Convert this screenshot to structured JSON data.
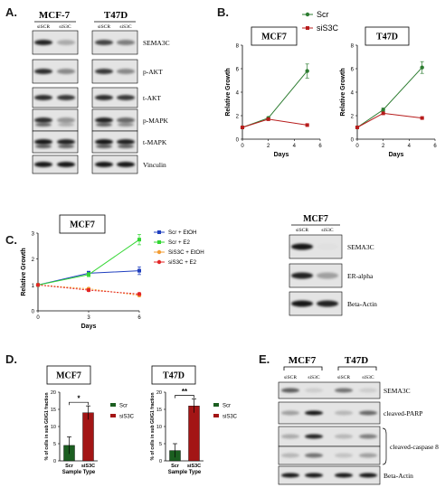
{
  "panels": {
    "A": {
      "letter": "A.",
      "cell_lines": [
        "MCF-7",
        "T47D"
      ],
      "lanes": [
        "siSCR",
        "siS3C"
      ],
      "blots": [
        "SEMA3C",
        "p-AKT",
        "t-AKT",
        "p-MAPK",
        "t-MAPK",
        "Vinculin"
      ]
    },
    "B": {
      "letter": "B."
    },
    "C": {
      "letter": "C.",
      "blot": {
        "cell_line": "MCF7",
        "lanes": [
          "siSCR",
          "siS3C"
        ],
        "bands": [
          "SEMA3C",
          "ER-alpha",
          "Beta-Actin"
        ]
      }
    },
    "D": {
      "letter": "D."
    },
    "E": {
      "letter": "E.",
      "cell_lines": [
        "MCF7",
        "T47D"
      ],
      "lanes": [
        "siSCR",
        "siS3C",
        "siSCR",
        "siS3C"
      ],
      "bands": [
        "SEMA3C",
        "cleaved-PARP",
        "cleaved-caspase 8",
        "Beta-Actin"
      ]
    }
  },
  "colors": {
    "scr": "#2e7d32",
    "si": "#b71c1c",
    "c_scr_etoh": "#1f3fbf",
    "c_scr_e2": "#33d633",
    "c_si_etoh": "#f39c33",
    "c_si_e2": "#e32626",
    "d_scr": "#1b5e20",
    "d_si": "#a31515"
  },
  "chart_data": [
    {
      "type": "line",
      "title": "MCF7",
      "xlabel": "Days",
      "ylabel": "Relative Growth",
      "xlim": [
        0,
        6
      ],
      "ylim": [
        0,
        8
      ],
      "xticks": [
        "0",
        "2",
        "4",
        "6"
      ],
      "yticks": [
        "0",
        "2",
        "4",
        "6",
        "8"
      ],
      "x": [
        0,
        2,
        5
      ],
      "series": [
        {
          "name": "Scr",
          "values": [
            1.0,
            1.8,
            5.8
          ],
          "err": [
            0,
            0.1,
            0.6
          ]
        },
        {
          "name": "siS3C",
          "values": [
            1.0,
            1.7,
            1.2
          ],
          "err": [
            0,
            0.1,
            0.05
          ]
        }
      ],
      "legend": "top-right"
    },
    {
      "type": "line",
      "title": "T47D",
      "xlabel": "Days",
      "ylabel": "Relative Growth",
      "xlim": [
        0,
        6
      ],
      "ylim": [
        0,
        8
      ],
      "xticks": [
        "0",
        "2",
        "4",
        "6"
      ],
      "yticks": [
        "0",
        "2",
        "4",
        "6",
        "8"
      ],
      "x": [
        0,
        2,
        5
      ],
      "series": [
        {
          "name": "Scr",
          "values": [
            1.0,
            2.5,
            6.1
          ],
          "err": [
            0,
            0.15,
            0.5
          ]
        },
        {
          "name": "siS3C",
          "values": [
            1.0,
            2.2,
            1.8
          ],
          "err": [
            0,
            0.1,
            0.05
          ]
        }
      ]
    },
    {
      "type": "line",
      "title": "MCF7",
      "xlabel": "Days",
      "ylabel": "Relative Growth",
      "xlim": [
        0,
        6
      ],
      "ylim": [
        0,
        3
      ],
      "xticks": [
        "0",
        "3",
        "6"
      ],
      "yticks": [
        "0",
        "1",
        "2",
        "3"
      ],
      "x": [
        0,
        3,
        6
      ],
      "series": [
        {
          "name": "Scr + EtOH",
          "values": [
            1.0,
            1.45,
            1.55
          ],
          "err": [
            0,
            0.08,
            0.15
          ]
        },
        {
          "name": "Scr + E2",
          "values": [
            1.0,
            1.4,
            2.75
          ],
          "err": [
            0,
            0.08,
            0.2
          ]
        },
        {
          "name": "SiS3C + EtOH",
          "values": [
            1.0,
            0.85,
            0.6
          ],
          "err": [
            0,
            0.05,
            0.05
          ]
        },
        {
          "name": "siS3C + E2",
          "values": [
            1.0,
            0.8,
            0.65
          ],
          "err": [
            0,
            0.05,
            0.05
          ]
        }
      ],
      "legend": "right"
    },
    {
      "type": "bar",
      "title": "MCF7",
      "xlabel": "Sample Type",
      "ylabel": "% of cells in sub G0/G1 fraction",
      "ylim": [
        0,
        20
      ],
      "yticks": [
        "0",
        "5",
        "10",
        "15",
        "20"
      ],
      "categories": [
        "Scr",
        "siS3C"
      ],
      "values": [
        4.5,
        14
      ],
      "err": [
        2.5,
        2.0
      ],
      "significance": "*",
      "legend_entries": [
        "Scr",
        "siS3C"
      ]
    },
    {
      "type": "bar",
      "title": "T47D",
      "xlabel": "Sample Type",
      "ylabel": "% of cells in sub G0/G1 fraction",
      "ylim": [
        0,
        20
      ],
      "yticks": [
        "0",
        "5",
        "10",
        "15",
        "20"
      ],
      "categories": [
        "Scr",
        "siS3C"
      ],
      "values": [
        3.0,
        16
      ],
      "err": [
        2.0,
        2.0
      ],
      "significance": "**",
      "legend_entries": [
        "Scr",
        "siS3C"
      ]
    }
  ]
}
